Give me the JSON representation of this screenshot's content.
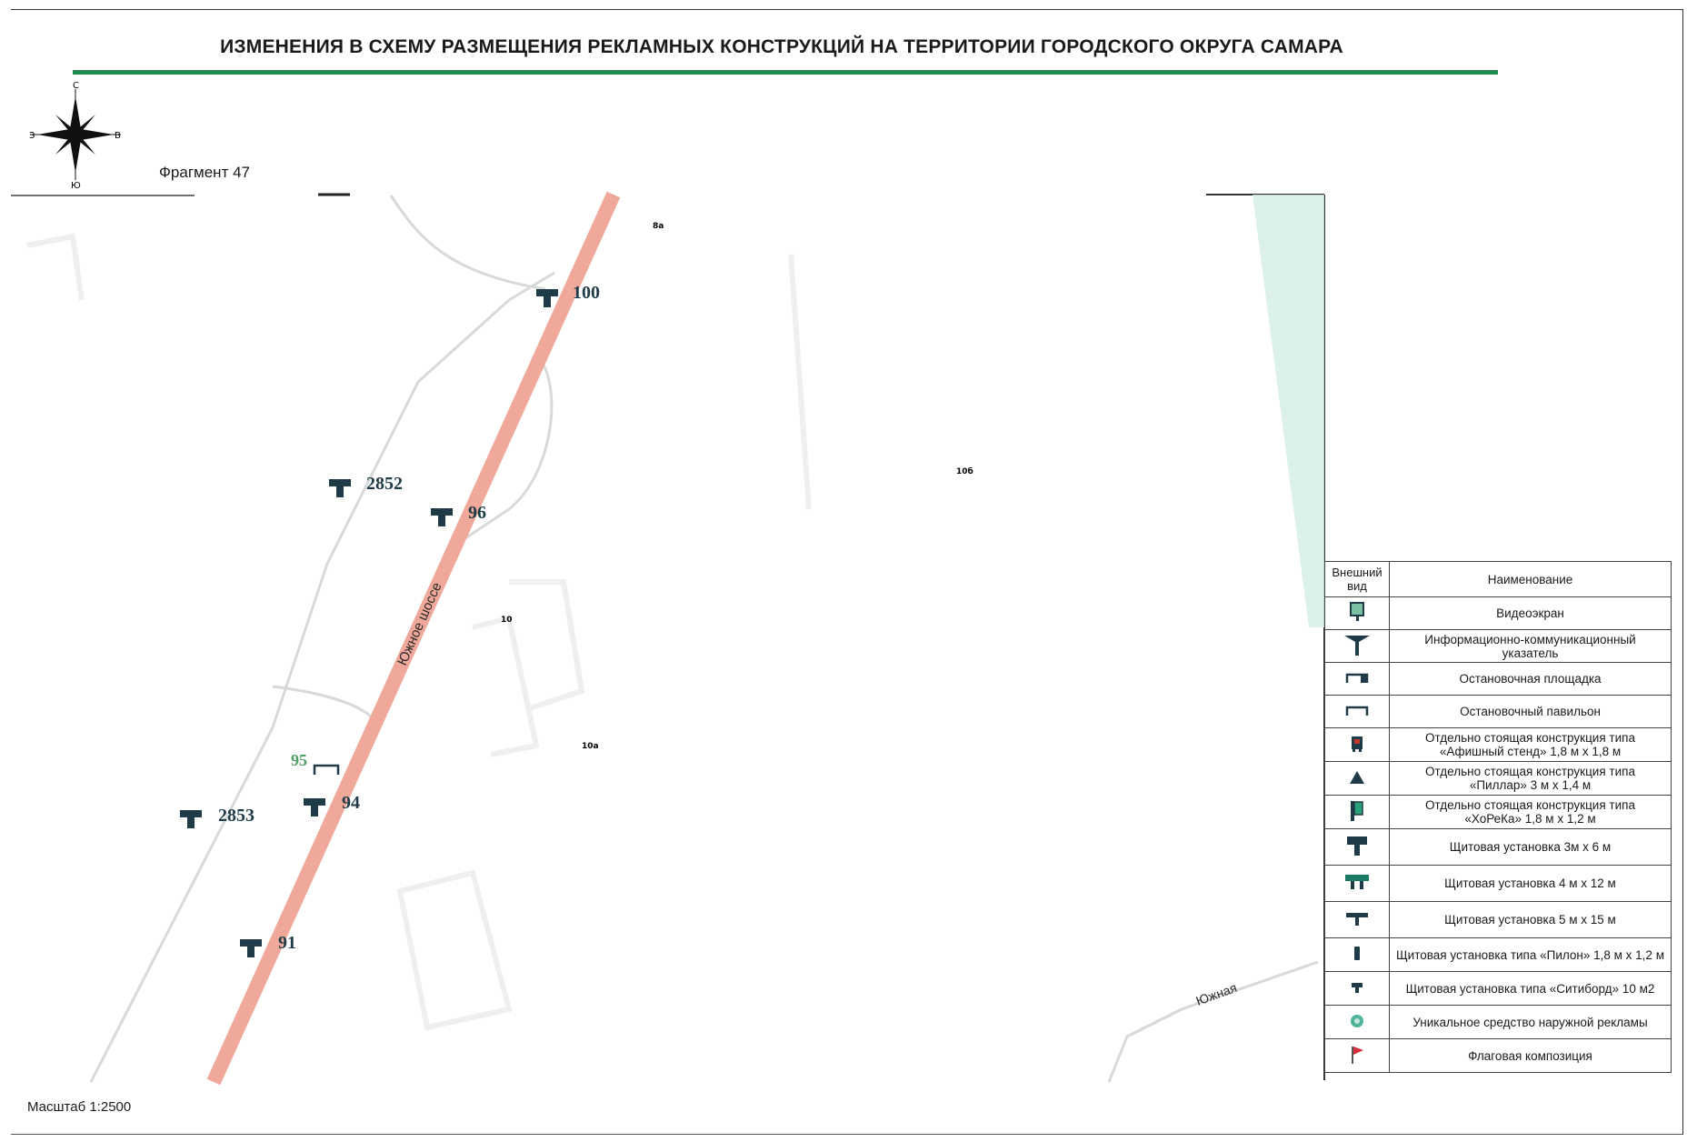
{
  "title": "ИЗМЕНЕНИЯ В СХЕМУ РАЗМЕЩЕНИЯ РЕКЛАМНЫХ КОНСТРУКЦИЙ НА ТЕРРИТОРИИ ГОРОДСКОГО ОКРУГА САМАРА",
  "fragment_label": "Фрагмент 47",
  "scale_label": "Масштаб 1:2500",
  "compass": {
    "north": "С",
    "south": "Ю",
    "east": "В",
    "west": "З"
  },
  "colors": {
    "title_rule": "#1f8a4c",
    "highway": "#f0a89a",
    "green_area": "#d6eee3",
    "marker": "#1f3b48",
    "marker_green": "#4fa066"
  },
  "streets": {
    "highway": "Южное шоссе",
    "side_street": "Южная"
  },
  "building_numbers": [
    "8а",
    "10б",
    "10",
    "10а"
  ],
  "markers": [
    {
      "id": "100",
      "type": "billboard-3x6"
    },
    {
      "id": "2852",
      "type": "billboard-3x6"
    },
    {
      "id": "96",
      "type": "billboard-3x6"
    },
    {
      "id": "95",
      "type": "bus-pavilion"
    },
    {
      "id": "94",
      "type": "billboard-3x6"
    },
    {
      "id": "2853",
      "type": "billboard-3x6"
    },
    {
      "id": "91",
      "type": "billboard-3x6"
    }
  ],
  "legend": {
    "header_icon": "Внешний вид",
    "header_name": "Наименование",
    "items": [
      {
        "icon": "video-screen-icon",
        "name": "Видеоэкран"
      },
      {
        "icon": "info-pointer-icon",
        "name": "Информационно-коммуникационный указатель"
      },
      {
        "icon": "bus-stop-platform-icon",
        "name": "Остановочная площадка"
      },
      {
        "icon": "bus-pavilion-icon",
        "name": "Остановочный павильон"
      },
      {
        "icon": "poster-stand-icon",
        "name": "Отдельно стоящая конструкция типа «Афишный стенд» 1,8 м х 1,8 м"
      },
      {
        "icon": "pillar-icon",
        "name": "Отдельно стоящая конструкция типа «Пиллар» 3 м х 1,4 м"
      },
      {
        "icon": "horeca-icon",
        "name": "Отдельно стоящая конструкция типа «ХоРеКа» 1,8 м х 1,2 м"
      },
      {
        "icon": "billboard-3x6-icon",
        "name": "Щитовая установка 3м х 6 м"
      },
      {
        "icon": "billboard-4x12-icon",
        "name": "Щитовая установка 4 м х 12 м"
      },
      {
        "icon": "billboard-5x15-icon",
        "name": "Щитовая установка 5 м х 15 м"
      },
      {
        "icon": "pylon-icon",
        "name": "Щитовая установка типа «Пилон» 1,8 м х 1,2 м"
      },
      {
        "icon": "cityboard-icon",
        "name": "Щитовая установка типа «Ситиборд» 10 м2"
      },
      {
        "icon": "unique-ad-icon",
        "name": "Уникальное средство наружной рекламы"
      },
      {
        "icon": "flag-icon",
        "name": "Флаговая композиция"
      }
    ]
  }
}
